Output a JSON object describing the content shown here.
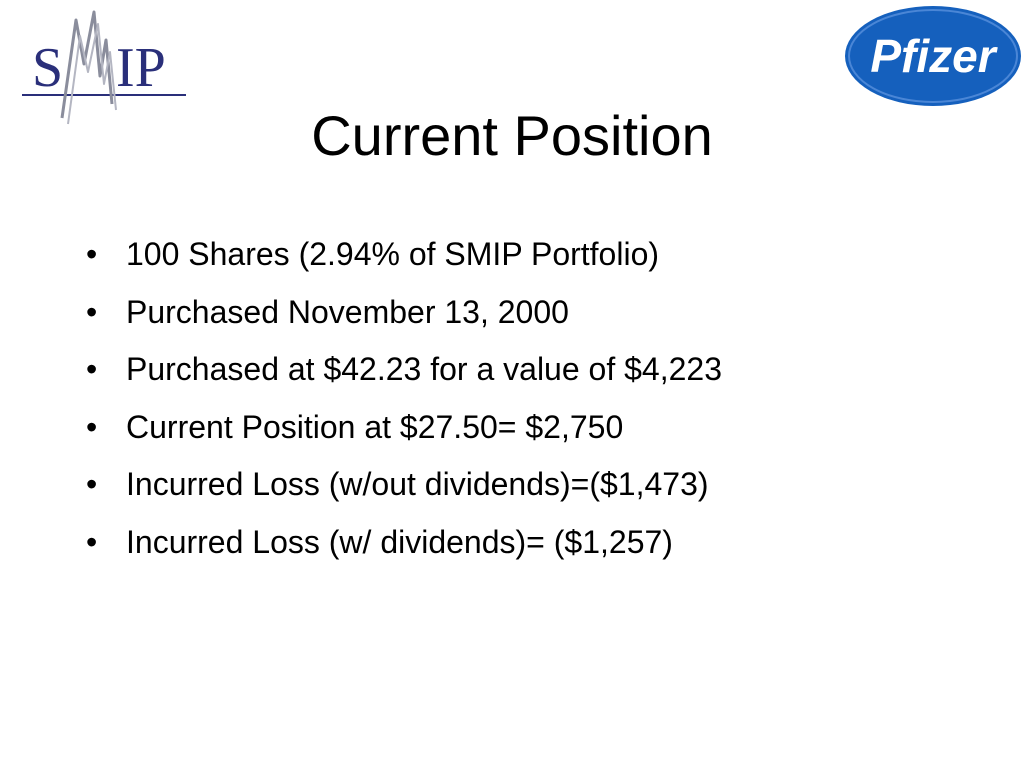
{
  "slide": {
    "title": "Current Position",
    "bullets": [
      "100 Shares (2.94% of SMIP Portfolio)",
      "Purchased November 13, 2000",
      "Purchased at $42.23 for a value of $4,223",
      "Current Position at $27.50= $2,750",
      "Incurred Loss (w/out dividends)=($1,473)",
      "Incurred Loss (w/ dividends)= ($1,257)"
    ],
    "bullet_symbol": "•"
  },
  "logos": {
    "left": {
      "text": "SMIP",
      "letter_s": "S",
      "letters_ip": "IP",
      "icon": "smip-logo-icon",
      "color": "#2a2f7a",
      "accent": "#8a8d9c"
    },
    "right": {
      "text": "Pfizer",
      "icon": "pfizer-logo-icon",
      "color": "#1560bd",
      "text_color": "#ffffff"
    }
  },
  "colors": {
    "background": "#ffffff",
    "text": "#000000"
  }
}
